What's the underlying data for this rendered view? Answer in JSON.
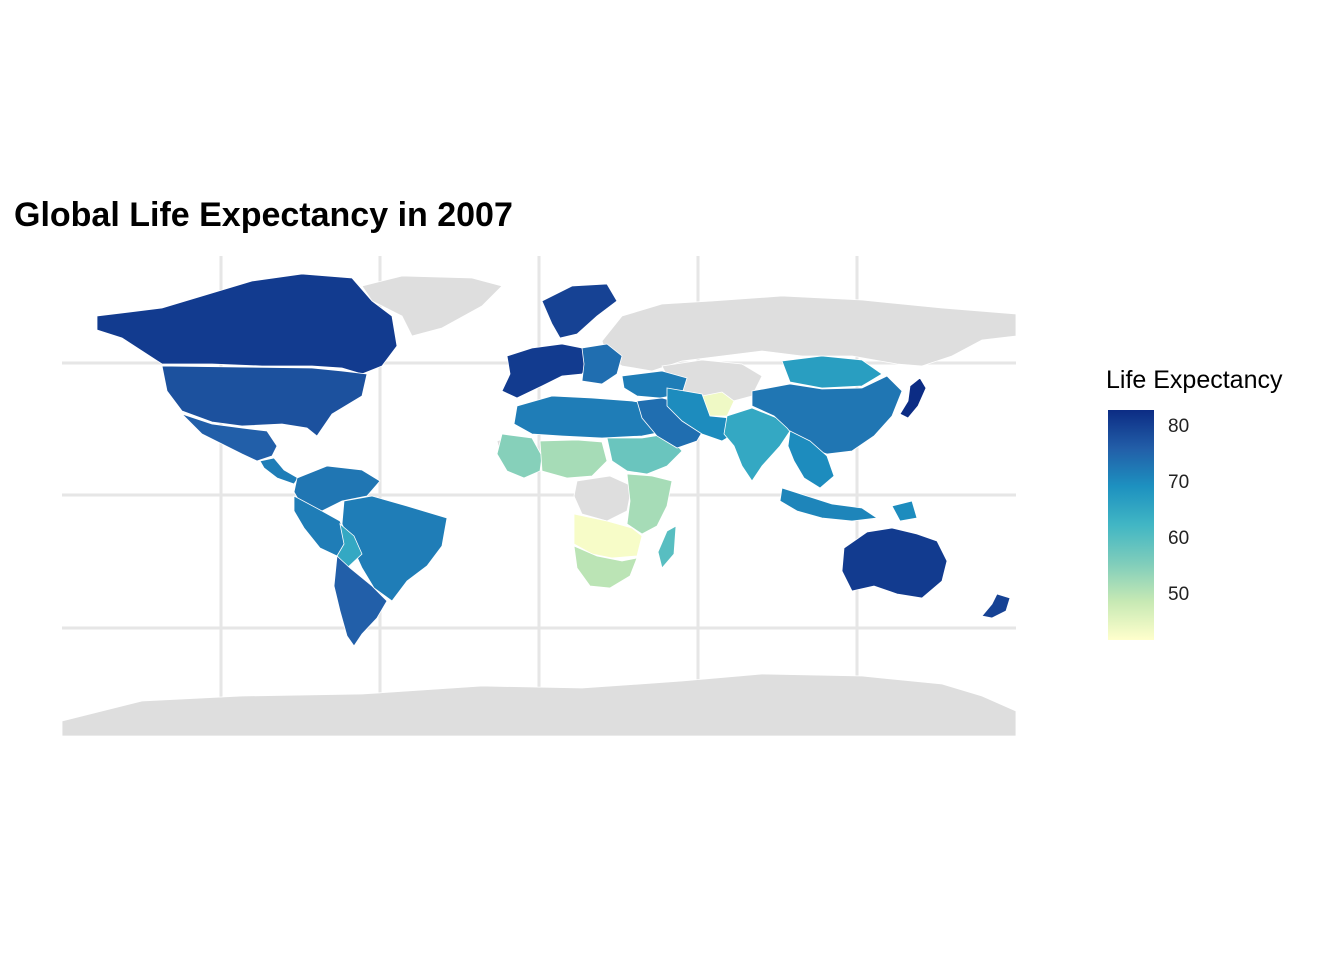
{
  "title": "Global Life Expectancy in 2007",
  "legend": {
    "title": "Life Expectancy",
    "ticks": [
      "80",
      "70",
      "60",
      "50"
    ],
    "tick_values": [
      80,
      70,
      60,
      50
    ],
    "range": [
      42,
      83
    ],
    "palette": [
      "#ffffcc",
      "#c7e9b4",
      "#7fcdbb",
      "#41b6c4",
      "#1d91c0",
      "#225ea8",
      "#0c2c84"
    ]
  },
  "colors": {
    "no_data": "#dedede",
    "grid": "#e6e6e6",
    "border": "#ffffff"
  },
  "chart_data": {
    "type": "choropleth",
    "title": "Global Life Expectancy in 2007",
    "fill_variable": "Life Expectancy",
    "scale_range": [
      42,
      83
    ],
    "regions": [
      {
        "name": "Canada",
        "value": 81
      },
      {
        "name": "United States",
        "value": 78
      },
      {
        "name": "Mexico",
        "value": 76
      },
      {
        "name": "Central America",
        "value": 72
      },
      {
        "name": "Colombia / Venezuela",
        "value": 73
      },
      {
        "name": "Brazil",
        "value": 72
      },
      {
        "name": "Peru / Ecuador",
        "value": 72
      },
      {
        "name": "Bolivia",
        "value": 65
      },
      {
        "name": "Argentina / Chile",
        "value": 76
      },
      {
        "name": "Western Europe",
        "value": 81
      },
      {
        "name": "Eastern Europe",
        "value": 74
      },
      {
        "name": "Scandinavia",
        "value": 80
      },
      {
        "name": "North Africa",
        "value": 72
      },
      {
        "name": "West Africa",
        "value": 55
      },
      {
        "name": "Sahel",
        "value": 52
      },
      {
        "name": "Ethiopia / Sudan",
        "value": 58
      },
      {
        "name": "East Africa",
        "value": 52
      },
      {
        "name": "Angola / Zambia",
        "value": 43
      },
      {
        "name": "Southern Africa",
        "value": 50
      },
      {
        "name": "Madagascar",
        "value": 60
      },
      {
        "name": "Middle East",
        "value": 72
      },
      {
        "name": "Arabian Peninsula",
        "value": 74
      },
      {
        "name": "Afghanistan",
        "value": 44
      },
      {
        "name": "Iran / Pakistan",
        "value": 70
      },
      {
        "name": "India",
        "value": 65
      },
      {
        "name": "Mongolia",
        "value": 67
      },
      {
        "name": "China",
        "value": 73
      },
      {
        "name": "Japan",
        "value": 83
      },
      {
        "name": "Southeast Asia",
        "value": 70
      },
      {
        "name": "Indonesia",
        "value": 71
      },
      {
        "name": "Papua New Guinea",
        "value": 70
      },
      {
        "name": "Australia",
        "value": 81
      },
      {
        "name": "New Zealand",
        "value": 80
      }
    ]
  }
}
